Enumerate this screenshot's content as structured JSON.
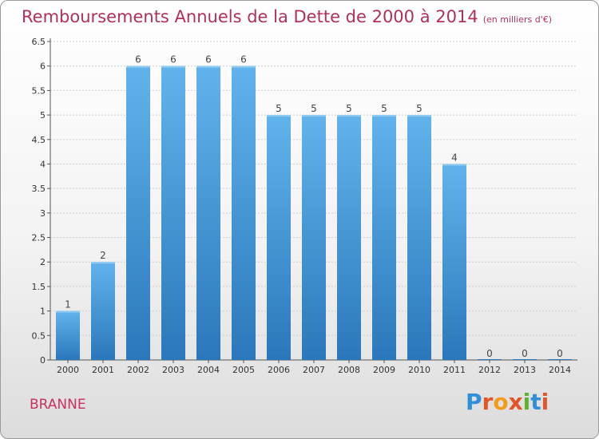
{
  "header": {
    "title": "Remboursements Annuels de la Dette de 2000 à 2014",
    "unit": "(en milliers d'€)"
  },
  "footer": {
    "commune": "BRANNE",
    "logo": {
      "letters": [
        "P",
        "r",
        "o",
        "x",
        "i",
        "t",
        "i"
      ],
      "colors": [
        "#2f8fd8",
        "#e2542a",
        "#f39c1a",
        "#e2542a",
        "#62b030",
        "#2f8fd8",
        "#e2542a"
      ]
    }
  },
  "colors": {
    "title": "#b0305a",
    "bar_top": "#62b3ec",
    "bar_bottom": "#2a78bb",
    "grid": "#cfcfcf"
  },
  "chart_data": {
    "type": "bar",
    "title": "Remboursements Annuels de la Dette de 2000 à 2014",
    "xlabel": "",
    "ylabel": "",
    "categories": [
      "2000",
      "2001",
      "2002",
      "2003",
      "2004",
      "2005",
      "2006",
      "2007",
      "2008",
      "2009",
      "2010",
      "2011",
      "2012",
      "2013",
      "2014"
    ],
    "values": [
      1,
      2,
      6,
      6,
      6,
      6,
      5,
      5,
      5,
      5,
      5,
      4,
      0,
      0,
      0
    ],
    "labels": [
      "1",
      "2",
      "6",
      "6",
      "6",
      "6",
      "5",
      "5",
      "5",
      "5",
      "5",
      "4",
      "0",
      "0",
      "0"
    ],
    "ylim": [
      0,
      6.5
    ],
    "yticks": [
      0,
      0.5,
      1,
      1.5,
      2,
      2.5,
      3,
      3.5,
      4,
      4.5,
      5,
      5.5,
      6,
      6.5
    ],
    "ytick_labels": [
      "0",
      "0.5",
      "1",
      "1.5",
      "2",
      "2.5",
      "3",
      "3.5",
      "4",
      "4.5",
      "5",
      "5.5",
      "6",
      "6.5"
    ],
    "grid": true
  }
}
